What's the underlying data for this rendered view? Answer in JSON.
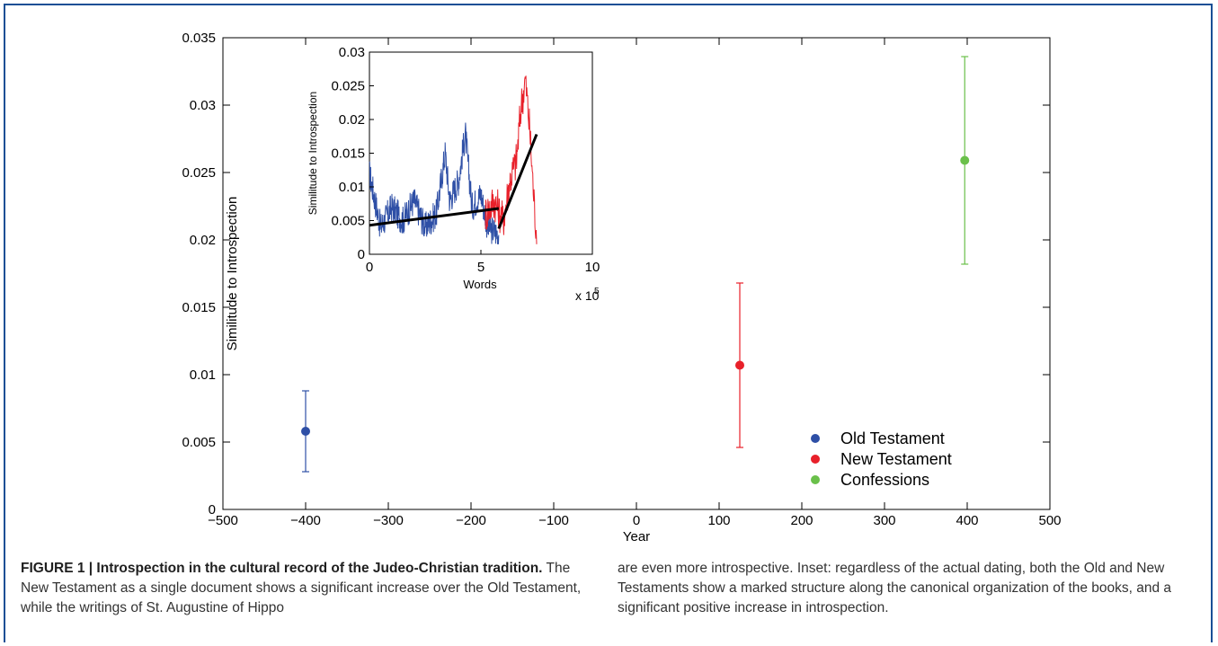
{
  "chart_data": [
    {
      "type": "scatter",
      "title": "",
      "xlabel": "Year",
      "ylabel": "Similitude to Introspection",
      "xlim": [
        -500,
        500
      ],
      "ylim": [
        0,
        0.035
      ],
      "xticks": [
        "-500",
        "-400",
        "-300",
        "-200",
        "-100",
        "0",
        "100",
        "200",
        "300",
        "400",
        "500"
      ],
      "yticks": [
        "0",
        "0.005",
        "0.01",
        "0.015",
        "0.02",
        "0.025",
        "0.03",
        "0.035"
      ],
      "legend_position": "bottom-right",
      "grid": false,
      "series": [
        {
          "name": "Old Testament",
          "color": "#2e4fa6",
          "x": -400,
          "y": 0.0058,
          "err_low": 0.0028,
          "err_high": 0.0088
        },
        {
          "name": "New Testament",
          "color": "#e8202a",
          "x": 125,
          "y": 0.0107,
          "err_low": 0.0046,
          "err_high": 0.0168
        },
        {
          "name": "Confessions",
          "color": "#6ac04a",
          "x": 397,
          "y": 0.0259,
          "err_low": 0.0182,
          "err_high": 0.0336
        }
      ]
    },
    {
      "type": "line",
      "title": "",
      "xlabel": "Words",
      "ylabel": "Similitude to Introspection",
      "x_multiplier_label": "x 10",
      "x_multiplier_exponent": "5",
      "xlim": [
        0,
        10
      ],
      "ylim": [
        0,
        0.03
      ],
      "xticks": [
        "0",
        "5",
        "10"
      ],
      "yticks": [
        "0",
        "0.005",
        "0.01",
        "0.015",
        "0.02",
        "0.025",
        "0.03"
      ],
      "grid": false,
      "series": [
        {
          "color": "#2e4fa6",
          "x_range": [
            0,
            5.8
          ],
          "description_points": [
            [
              0,
              0.012
            ],
            [
              0.5,
              0.004
            ],
            [
              1.0,
              0.007
            ],
            [
              1.5,
              0.005
            ],
            [
              2.0,
              0.008
            ],
            [
              2.5,
              0.004
            ],
            [
              3.0,
              0.006
            ],
            [
              3.4,
              0.015
            ],
            [
              3.6,
              0.008
            ],
            [
              4.0,
              0.011
            ],
            [
              4.3,
              0.018
            ],
            [
              4.6,
              0.007
            ],
            [
              5.0,
              0.009
            ],
            [
              5.3,
              0.004
            ],
            [
              5.8,
              0.003
            ]
          ]
        },
        {
          "color": "#e8202a",
          "x_range": [
            5.2,
            7.5
          ],
          "description_points": [
            [
              5.2,
              0.006
            ],
            [
              5.6,
              0.008
            ],
            [
              6.0,
              0.005
            ],
            [
              6.3,
              0.011
            ],
            [
              6.6,
              0.014
            ],
            [
              6.8,
              0.022
            ],
            [
              7.0,
              0.026
            ],
            [
              7.2,
              0.018
            ],
            [
              7.4,
              0.007
            ],
            [
              7.5,
              0.003
            ]
          ]
        }
      ],
      "trend_lines": [
        {
          "color": "#000000",
          "from": [
            0,
            0.0043
          ],
          "to": [
            5.8,
            0.0068
          ]
        },
        {
          "color": "#000000",
          "from": [
            5.8,
            0.0038
          ],
          "to": [
            7.5,
            0.0178
          ]
        }
      ]
    }
  ],
  "caption": {
    "title": "FIGURE 1 | Introspection in the cultural record of the Judeo-Christian tradition.",
    "body_left": "The New Testament as a single document shows a significant increase over the Old Testament, while the writings of St. Augustine of Hippo",
    "body_right": "are even more introspective. Inset: regardless of the actual dating, both the Old and New Testaments show a marked structure along the canonical organization of the books, and a significant positive increase in introspection."
  }
}
